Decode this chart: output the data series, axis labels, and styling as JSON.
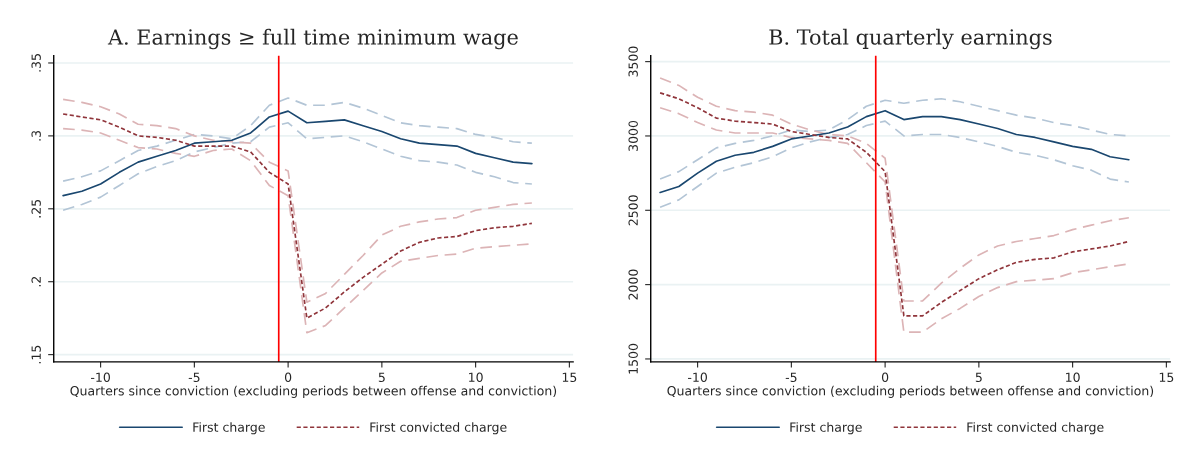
{
  "chart_data": [
    {
      "type": "line",
      "title": "A. Earnings ≥ full time minimum wage",
      "xlabel": "Quarters since conviction (excluding periods between offense and conviction)",
      "x": [
        -12,
        -11,
        -10,
        -9,
        -8,
        -7,
        -6,
        -5,
        -4,
        -3,
        -2,
        -1,
        0,
        1,
        2,
        3,
        4,
        5,
        6,
        7,
        8,
        9,
        10,
        11,
        12,
        13
      ],
      "series": [
        {
          "color": "#b3c5d6",
          "line_style": "dashed",
          "values": [
            0.269,
            0.272,
            0.276,
            0.283,
            0.29,
            0.293,
            0.297,
            0.301,
            0.3,
            0.298,
            0.307,
            0.321,
            0.326,
            0.321,
            0.321,
            0.323,
            0.319,
            0.314,
            0.309,
            0.307,
            0.306,
            0.305,
            0.301,
            0.299,
            0.296,
            0.295
          ]
        },
        {
          "color": "#b3c5d6",
          "line_style": "dashed",
          "values": [
            0.249,
            0.253,
            0.258,
            0.266,
            0.274,
            0.279,
            0.283,
            0.289,
            0.292,
            0.295,
            0.296,
            0.306,
            0.309,
            0.298,
            0.299,
            0.3,
            0.296,
            0.291,
            0.286,
            0.283,
            0.282,
            0.28,
            0.275,
            0.272,
            0.268,
            0.267
          ]
        },
        {
          "color": "#dcb4b6",
          "line_style": "dashed",
          "values": [
            0.325,
            0.323,
            0.32,
            0.315,
            0.308,
            0.307,
            0.305,
            0.3,
            0.297,
            0.296,
            0.295,
            0.282,
            0.276,
            0.186,
            0.192,
            0.205,
            0.218,
            0.232,
            0.238,
            0.241,
            0.243,
            0.244,
            0.249,
            0.251,
            0.253,
            0.254
          ]
        },
        {
          "color": "#dcb4b6",
          "line_style": "dashed",
          "values": [
            0.305,
            0.304,
            0.302,
            0.297,
            0.292,
            0.291,
            0.288,
            0.286,
            0.29,
            0.291,
            0.283,
            0.266,
            0.259,
            0.165,
            0.17,
            0.182,
            0.194,
            0.206,
            0.214,
            0.216,
            0.218,
            0.219,
            0.223,
            0.224,
            0.225,
            0.226
          ]
        },
        {
          "name": "First charge",
          "color": "#1a476f",
          "line_style": "solid",
          "values": [
            0.259,
            0.262,
            0.267,
            0.275,
            0.282,
            0.286,
            0.29,
            0.295,
            0.296,
            0.297,
            0.302,
            0.313,
            0.317,
            0.309,
            0.31,
            0.311,
            0.307,
            0.303,
            0.298,
            0.295,
            0.294,
            0.293,
            0.288,
            0.285,
            0.282,
            0.281
          ]
        },
        {
          "name": "First convicted charge",
          "color": "#90353b",
          "line_style": "dotted",
          "values": [
            0.315,
            0.313,
            0.311,
            0.306,
            0.3,
            0.299,
            0.297,
            0.293,
            0.293,
            0.293,
            0.289,
            0.275,
            0.267,
            0.175,
            0.182,
            0.193,
            0.203,
            0.212,
            0.221,
            0.227,
            0.23,
            0.231,
            0.235,
            0.237,
            0.238,
            0.24
          ]
        }
      ],
      "xlim": [
        -12.5,
        15.2
      ],
      "xticks": [
        -10,
        -5,
        0,
        5,
        10,
        15
      ],
      "ylim": [
        0.145,
        0.355
      ],
      "yticks": [
        {
          "value": 0.15,
          "label": ".15"
        },
        {
          "value": 0.2,
          "label": ".2"
        },
        {
          "value": 0.25,
          "label": ".25"
        },
        {
          "value": 0.3,
          "label": ".3"
        },
        {
          "value": 0.35,
          "label": ".35"
        }
      ],
      "ref_lines": [
        {
          "axis": "x",
          "value": -0.5,
          "color": "#ff0000"
        }
      ],
      "grid": "y",
      "legend": "bottom"
    },
    {
      "type": "line",
      "title": "B. Total quarterly earnings",
      "xlabel": "Quarters since conviction (excluding periods between offense and conviction)",
      "x": [
        -12,
        -11,
        -10,
        -9,
        -8,
        -7,
        -6,
        -5,
        -4,
        -3,
        -2,
        -1,
        0,
        1,
        2,
        3,
        4,
        5,
        6,
        7,
        8,
        9,
        10,
        11,
        12,
        13
      ],
      "series": [
        {
          "color": "#b3c5d6",
          "line_style": "dashed",
          "values": [
            2710,
            2760,
            2840,
            2920,
            2950,
            2970,
            3000,
            3040,
            3030,
            3040,
            3110,
            3200,
            3240,
            3220,
            3240,
            3250,
            3230,
            3200,
            3170,
            3140,
            3120,
            3090,
            3070,
            3040,
            3010,
            3000
          ]
        },
        {
          "color": "#b3c5d6",
          "line_style": "dashed",
          "values": [
            2520,
            2570,
            2660,
            2750,
            2790,
            2820,
            2860,
            2920,
            2960,
            2990,
            3010,
            3070,
            3100,
            3000,
            3010,
            3010,
            2990,
            2960,
            2930,
            2890,
            2870,
            2840,
            2800,
            2770,
            2710,
            2690
          ]
        },
        {
          "color": "#dcb4b6",
          "line_style": "dashed",
          "values": [
            3390,
            3340,
            3260,
            3200,
            3170,
            3160,
            3140,
            3080,
            3040,
            3010,
            3000,
            2950,
            2850,
            1890,
            1890,
            2010,
            2110,
            2200,
            2260,
            2290,
            2310,
            2330,
            2370,
            2400,
            2430,
            2450
          ]
        },
        {
          "color": "#dcb4b6",
          "line_style": "dashed",
          "values": [
            3190,
            3150,
            3090,
            3040,
            3020,
            3020,
            3020,
            2990,
            2980,
            2970,
            2950,
            2820,
            2690,
            1680,
            1680,
            1770,
            1840,
            1920,
            1980,
            2020,
            2030,
            2040,
            2080,
            2100,
            2120,
            2140
          ]
        },
        {
          "name": "First charge",
          "color": "#1a476f",
          "line_style": "solid",
          "values": [
            2620,
            2660,
            2750,
            2830,
            2870,
            2890,
            2930,
            2980,
            3000,
            3020,
            3060,
            3130,
            3170,
            3110,
            3130,
            3130,
            3110,
            3080,
            3050,
            3010,
            2990,
            2960,
            2930,
            2910,
            2860,
            2840
          ]
        },
        {
          "name": "First convicted charge",
          "color": "#90353b",
          "line_style": "dotted",
          "values": [
            3290,
            3250,
            3190,
            3120,
            3100,
            3090,
            3080,
            3030,
            3010,
            2990,
            2980,
            2890,
            2760,
            1790,
            1790,
            1880,
            1960,
            2040,
            2100,
            2150,
            2170,
            2180,
            2220,
            2240,
            2260,
            2290
          ]
        }
      ],
      "xlim": [
        -12.5,
        15.2
      ],
      "xticks": [
        -10,
        -5,
        0,
        5,
        10,
        15
      ],
      "ylim": [
        1480,
        3540
      ],
      "yticks": [
        1500,
        2000,
        2500,
        3000,
        3500
      ],
      "ref_lines": [
        {
          "axis": "x",
          "value": -0.5,
          "color": "#ff0000"
        }
      ],
      "grid": "y",
      "legend": "bottom"
    }
  ]
}
